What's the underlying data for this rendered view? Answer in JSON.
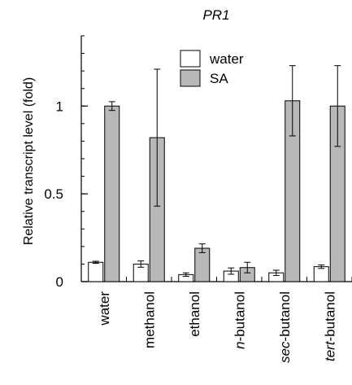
{
  "chart_data": {
    "type": "bar",
    "title": "PR1",
    "xlabel": "",
    "ylabel": "Relative transcript level (fold)",
    "ylim": [
      0,
      1.4
    ],
    "yticks": [
      {
        "value": 0,
        "label": "0"
      },
      {
        "value": 0.5,
        "label": "0.5"
      },
      {
        "value": 1,
        "label": "1"
      }
    ],
    "categories": [
      {
        "prefix": "",
        "italic": "",
        "rest": "water"
      },
      {
        "prefix": "",
        "italic": "",
        "rest": "methanol"
      },
      {
        "prefix": "",
        "italic": "",
        "rest": "ethanol"
      },
      {
        "prefix": "",
        "italic": "n",
        "rest": "-butanol"
      },
      {
        "prefix": "",
        "italic": "sec",
        "rest": "-butanol"
      },
      {
        "prefix": "",
        "italic": "tert",
        "rest": "-butanol"
      }
    ],
    "series": [
      {
        "name": "water",
        "color": "#ffffff",
        "values": [
          0.11,
          0.1,
          0.04,
          0.06,
          0.05,
          0.085
        ],
        "errors": [
          0.006,
          0.018,
          0.01,
          0.018,
          0.015,
          0.01
        ]
      },
      {
        "name": "SA",
        "color": "#b8b8b8",
        "values": [
          1.0,
          0.82,
          0.19,
          0.08,
          1.03,
          1.0
        ],
        "errors": [
          0.025,
          0.39,
          0.025,
          0.03,
          0.2,
          0.23
        ]
      }
    ],
    "legend": {
      "position": "top-center"
    },
    "grid": false
  }
}
